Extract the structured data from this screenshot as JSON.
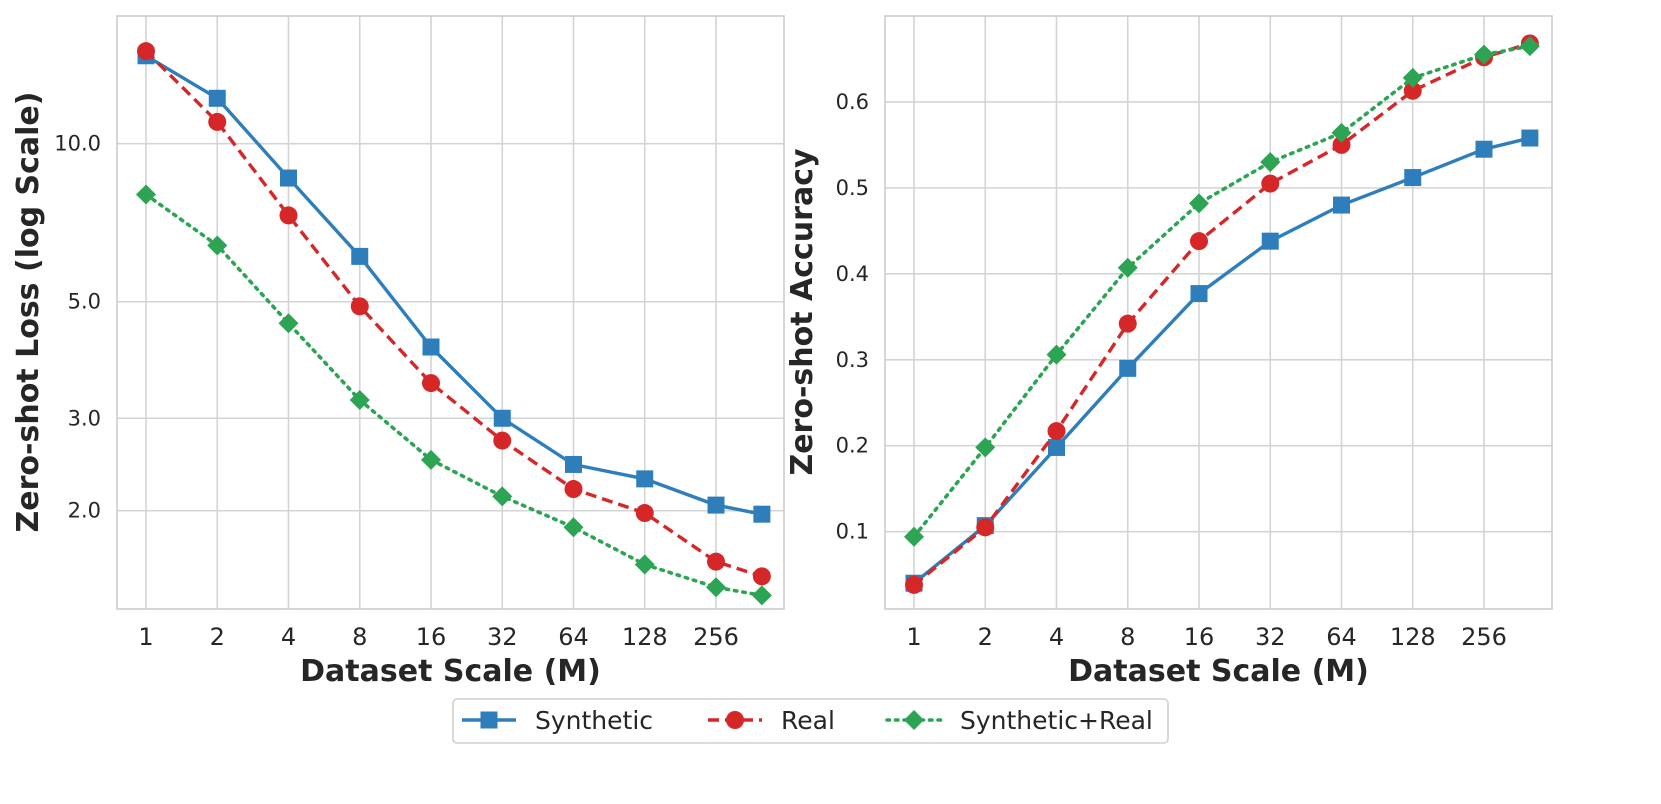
{
  "colors": {
    "synthetic": "#2e7ebc",
    "real": "#d62728",
    "synthetic_real": "#2ca453",
    "grid": "#d4d4d4",
    "frame": "#cccccc"
  },
  "chart_data": [
    {
      "type": "line",
      "xscale": "log2",
      "yscale": "log",
      "x": [
        1,
        2,
        4,
        8,
        16,
        32,
        64,
        128,
        256,
        400
      ],
      "xticks": [
        1,
        2,
        4,
        8,
        16,
        32,
        64,
        128,
        256
      ],
      "xtick_labels": [
        "1",
        "2",
        "4",
        "8",
        "16",
        "32",
        "64",
        "128",
        "256"
      ],
      "yticks": [
        2.0,
        3.0,
        5.0,
        10.0
      ],
      "ytick_labels": [
        "2.0",
        "3.0",
        "5.0",
        "10.0"
      ],
      "ylim": [
        1.3,
        17.5
      ],
      "xlabel": "Dataset Scale (M)",
      "ylabel": "Zero-shot Loss (log Scale)",
      "grid": true,
      "series": [
        {
          "name": "Synthetic",
          "key": "synthetic",
          "marker": "square",
          "dash": "solid",
          "values": [
            14.7,
            12.2,
            8.6,
            6.1,
            4.1,
            3.0,
            2.45,
            2.3,
            2.05,
            1.97
          ]
        },
        {
          "name": "Real",
          "key": "real",
          "marker": "circle",
          "dash": "dashed",
          "values": [
            15.0,
            11.0,
            7.3,
            4.9,
            3.5,
            2.72,
            2.2,
            1.98,
            1.6,
            1.5
          ]
        },
        {
          "name": "Synthetic+Real",
          "key": "synthetic_real",
          "marker": "diamond",
          "dash": "dotted",
          "values": [
            8.0,
            6.4,
            4.55,
            3.25,
            2.5,
            2.13,
            1.86,
            1.58,
            1.43,
            1.38
          ]
        }
      ]
    },
    {
      "type": "line",
      "xscale": "log2",
      "yscale": "linear",
      "x": [
        1,
        2,
        4,
        8,
        16,
        32,
        64,
        128,
        256,
        400
      ],
      "xticks": [
        1,
        2,
        4,
        8,
        16,
        32,
        64,
        128,
        256
      ],
      "xtick_labels": [
        "1",
        "2",
        "4",
        "8",
        "16",
        "32",
        "64",
        "128",
        "256"
      ],
      "yticks": [
        0.1,
        0.2,
        0.3,
        0.4,
        0.5,
        0.6
      ],
      "ytick_labels": [
        "0.1",
        "0.2",
        "0.3",
        "0.4",
        "0.5",
        "0.6"
      ],
      "ylim": [
        0.01,
        0.7
      ],
      "xlabel": "Dataset Scale (M)",
      "ylabel": "Zero-shot Accuracy",
      "grid": true,
      "series": [
        {
          "name": "Synthetic",
          "key": "synthetic",
          "marker": "square",
          "dash": "solid",
          "values": [
            0.04,
            0.107,
            0.198,
            0.29,
            0.377,
            0.438,
            0.48,
            0.512,
            0.545,
            0.558
          ]
        },
        {
          "name": "Real",
          "key": "real",
          "marker": "circle",
          "dash": "dashed",
          "values": [
            0.038,
            0.105,
            0.217,
            0.342,
            0.438,
            0.505,
            0.55,
            0.613,
            0.652,
            0.668
          ]
        },
        {
          "name": "Synthetic+Real",
          "key": "synthetic_real",
          "marker": "diamond",
          "dash": "dotted",
          "values": [
            0.094,
            0.198,
            0.306,
            0.407,
            0.482,
            0.53,
            0.564,
            0.628,
            0.655,
            0.665
          ]
        }
      ]
    }
  ],
  "legend": {
    "placement": "bottom-center",
    "entries": [
      {
        "label": "Synthetic",
        "key": "synthetic",
        "marker": "square",
        "dash": "solid"
      },
      {
        "label": "Real",
        "key": "real",
        "marker": "circle",
        "dash": "dashed"
      },
      {
        "label": "Synthetic+Real",
        "key": "synthetic_real",
        "marker": "diamond",
        "dash": "dotted"
      }
    ]
  }
}
